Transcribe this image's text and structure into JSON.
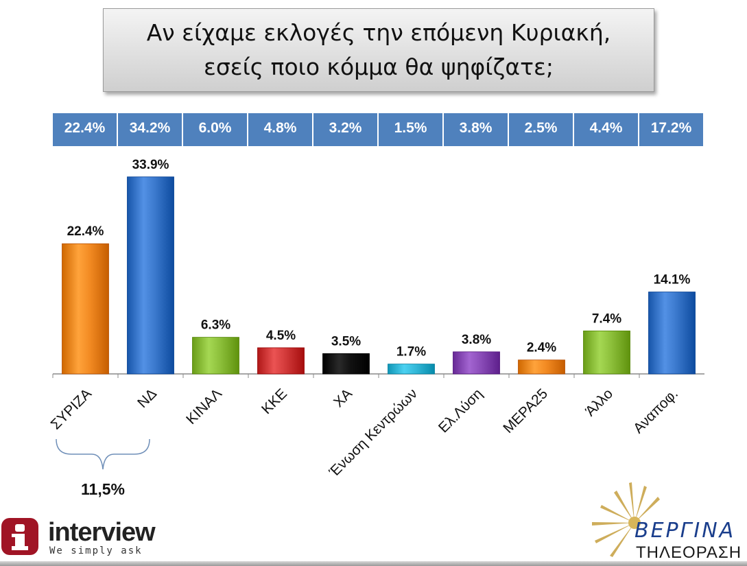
{
  "title": {
    "line1": "Αν είχαμε εκλογές την επόμενη Κυριακή,",
    "line2": "εσείς ποιο κόμμα θα ψηφίζατε;"
  },
  "chart_data": {
    "type": "bar",
    "title": "Αν είχαμε εκλογές την επόμενη Κυριακή, εσείς ποιο κόμμα θα ψηφίζατε;",
    "categories": [
      "ΣΥΡΙΖΑ",
      "ΝΔ",
      "ΚΙΝΑΛ",
      "ΚΚΕ",
      "ΧΑ",
      "Ένωση Κεντρώων",
      "Ελ.Λύση",
      "ΜΕΡΑ25",
      "Άλλο",
      "Αναποφ."
    ],
    "values": [
      22.4,
      33.9,
      6.3,
      4.5,
      3.5,
      1.7,
      3.8,
      2.4,
      7.4,
      14.1
    ],
    "value_labels": [
      "22.4%",
      "33.9%",
      "6.3%",
      "4.5%",
      "3.5%",
      "1.7%",
      "3.8%",
      "2.4%",
      "7.4%",
      "14.1%"
    ],
    "colors": [
      "#f28a22",
      "#3a78cc",
      "#8cbf3a",
      "#d23a3a",
      "#111111",
      "#33b8d8",
      "#8a4cb8",
      "#f28a22",
      "#8cbf3a",
      "#3a78cc"
    ],
    "previous_values": [
      "22.4%",
      "34.2%",
      "6.0%",
      "4.8%",
      "3.2%",
      "1.5%",
      "3.8%",
      "2.5%",
      "4.4%",
      "17.2%"
    ],
    "ylim": [
      0,
      36
    ],
    "grid": false,
    "legend": "none",
    "bracket": {
      "from": "ΣΥΡΙΖΑ",
      "to": "ΝΔ",
      "label": "11,5%"
    }
  },
  "colors": {
    "header_cell": "#4f81bd",
    "axis": "#888888"
  },
  "logos": {
    "interview_name": "interview",
    "interview_tagline": "We simply ask",
    "interview_icon": "info-i-icon",
    "vergina_name": "ΒΕΡΓΙΝΑ",
    "vergina_sub": "ΤΗΛΕΟΡΑΣΗ",
    "vergina_icon": "vergina-sun-icon"
  }
}
